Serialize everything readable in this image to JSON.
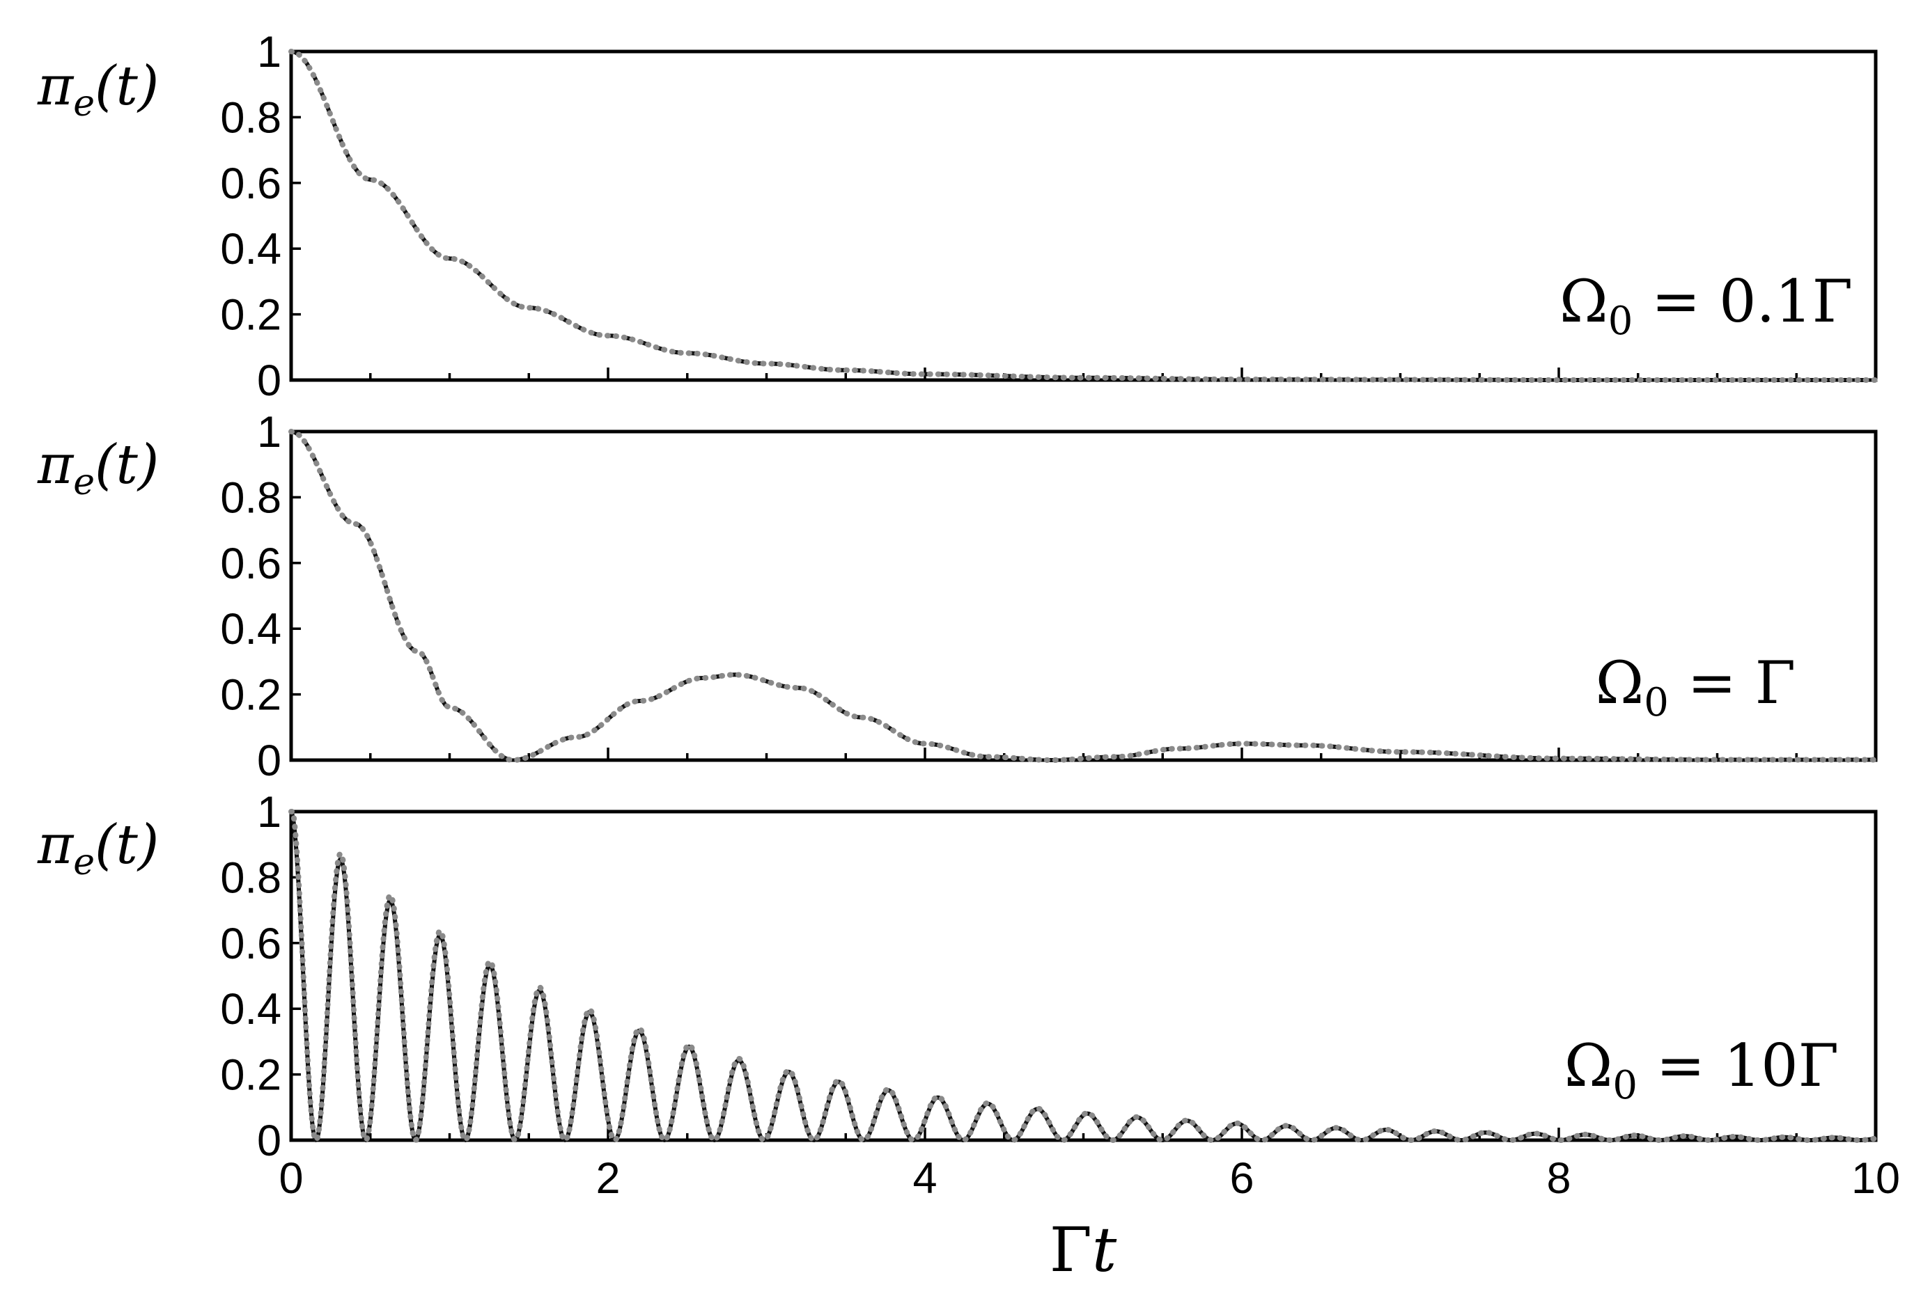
{
  "chart_data": [
    {
      "type": "line",
      "panel": "top",
      "ylabel": "π_e(t)",
      "annotation": "Ω_0 = 0.1Γ",
      "omega0_over_gamma": 0.1,
      "xlim": [
        0,
        10
      ],
      "ylim": [
        0,
        1
      ],
      "yticks": [
        "0",
        "0.2",
        "0.4",
        "0.6",
        "0.8",
        "1"
      ],
      "x": [
        0,
        0.5,
        1,
        1.5,
        2,
        2.5,
        3,
        3.5,
        4,
        5,
        6,
        7,
        8,
        9,
        10
      ],
      "series": [
        {
          "style": "solid-dark",
          "values": [
            1.0,
            0.61,
            0.37,
            0.22,
            0.135,
            0.082,
            0.05,
            0.03,
            0.018,
            0.007,
            0.002,
            0.001,
            0.0,
            0.0,
            0.0
          ]
        },
        {
          "style": "dotted-gray",
          "values": [
            1.0,
            0.61,
            0.37,
            0.22,
            0.135,
            0.082,
            0.05,
            0.03,
            0.018,
            0.007,
            0.002,
            0.001,
            0.0,
            0.0,
            0.0
          ]
        }
      ]
    },
    {
      "type": "line",
      "panel": "middle",
      "ylabel": "π_e(t)",
      "annotation": "Ω_0 = Γ",
      "omega0_over_gamma": 1,
      "xlim": [
        0,
        10
      ],
      "ylim": [
        0,
        1
      ],
      "yticks": [
        "0",
        "0.2",
        "0.4",
        "0.6",
        "0.8",
        "1"
      ],
      "x": [
        0,
        0.4,
        0.8,
        1.0,
        1.4,
        1.8,
        2.2,
        2.6,
        2.8,
        3.2,
        3.6,
        4.0,
        4.4,
        4.8,
        5.2,
        5.6,
        6.0,
        6.4,
        7.0,
        8.0,
        9.0,
        10.0
      ],
      "series": [
        {
          "style": "solid-dark",
          "values": [
            1.0,
            0.72,
            0.33,
            0.16,
            0.0,
            0.07,
            0.18,
            0.25,
            0.26,
            0.22,
            0.13,
            0.05,
            0.01,
            0.0,
            0.01,
            0.035,
            0.05,
            0.045,
            0.025,
            0.005,
            0.001,
            0.001
          ]
        },
        {
          "style": "dotted-gray",
          "values": [
            1.0,
            0.72,
            0.33,
            0.16,
            0.0,
            0.07,
            0.18,
            0.25,
            0.26,
            0.22,
            0.13,
            0.05,
            0.01,
            0.0,
            0.01,
            0.035,
            0.05,
            0.045,
            0.025,
            0.005,
            0.001,
            0.001
          ]
        }
      ]
    },
    {
      "type": "line",
      "panel": "bottom",
      "ylabel": "π_e(t)",
      "xlabel": "Γt",
      "annotation": "Ω_0 = 10Γ",
      "omega0_over_gamma": 10,
      "xlim": [
        0,
        10
      ],
      "ylim": [
        0,
        1
      ],
      "xticks": [
        "0",
        "2",
        "4",
        "6",
        "8",
        "10"
      ],
      "yticks": [
        "0",
        "0.2",
        "0.4",
        "0.6",
        "0.8",
        "1"
      ],
      "peaks_x": [
        0.0,
        0.31,
        0.63,
        0.94,
        1.26,
        1.57,
        1.88,
        2.2,
        2.51,
        2.83,
        3.14,
        3.46,
        3.77,
        4.08,
        4.4,
        4.71,
        5.03,
        5.34,
        5.65,
        5.97,
        6.28
      ],
      "peaks_y": [
        1.0,
        0.86,
        0.73,
        0.62,
        0.53,
        0.46,
        0.39,
        0.33,
        0.28,
        0.24,
        0.21,
        0.18,
        0.15,
        0.13,
        0.11,
        0.09,
        0.08,
        0.065,
        0.055,
        0.045,
        0.04
      ],
      "series": [
        {
          "style": "solid-dark",
          "envelope": "exp(-0.5*x)"
        },
        {
          "style": "dotted-gray",
          "envelope": "exp(-0.5*x)"
        }
      ]
    }
  ]
}
